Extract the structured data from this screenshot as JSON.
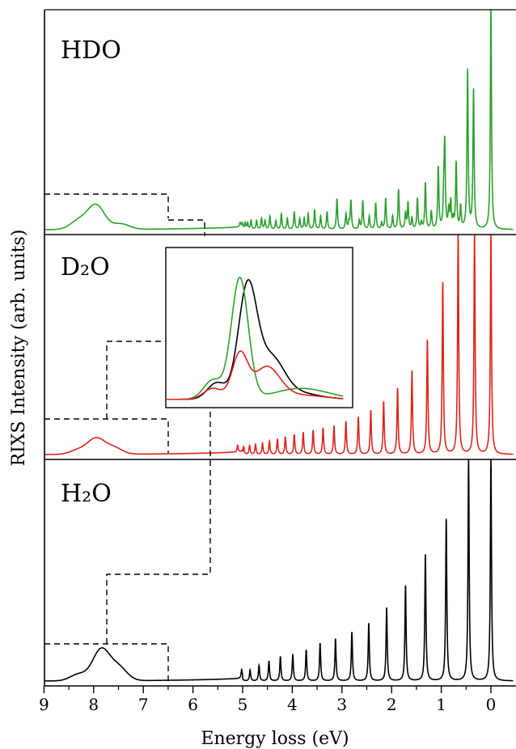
{
  "chart_data": {
    "type": "line",
    "xlabel": "Energy loss (eV)",
    "ylabel": "RIXS Intensity (arb. units)",
    "x_axis_reversed": true,
    "xlim": [
      9,
      -0.5
    ],
    "x_ticks": [
      "9",
      "8",
      "7",
      "6",
      "5",
      "4",
      "3",
      "2",
      "1",
      "0"
    ],
    "grid": false,
    "panels": [
      {
        "label": "HDO",
        "color": "#2ca02c",
        "vibrational_peaks": {
          "energies_eV": [
            0.0,
            0.35,
            0.47,
            0.61,
            0.7,
            0.76,
            0.81,
            0.85,
            0.93,
            0.95,
            1.06,
            1.2,
            1.32,
            1.4,
            1.48,
            1.59,
            1.67,
            1.72,
            1.86,
            1.98,
            2.12,
            2.2,
            2.32,
            2.45,
            2.58,
            2.65,
            2.82,
            2.86,
            2.92,
            3.1,
            3.3,
            3.43,
            3.55,
            3.68,
            3.76,
            3.85,
            3.96,
            4.1,
            4.22,
            4.33,
            4.45,
            4.55,
            4.62,
            4.72,
            4.83,
            4.9,
            4.95,
            5.0,
            5.05
          ],
          "heights": [
            1.0,
            0.63,
            0.72,
            0.1,
            0.3,
            0.04,
            0.12,
            0.08,
            0.37,
            0.14,
            0.28,
            0.08,
            0.21,
            0.03,
            0.14,
            0.05,
            0.12,
            0.07,
            0.18,
            0.06,
            0.14,
            0.03,
            0.12,
            0.06,
            0.13,
            0.04,
            0.13,
            0.03,
            0.07,
            0.14,
            0.08,
            0.06,
            0.09,
            0.07,
            0.05,
            0.05,
            0.08,
            0.05,
            0.07,
            0.04,
            0.06,
            0.04,
            0.05,
            0.04,
            0.04,
            0.03,
            0.03,
            0.02,
            0.02
          ]
        },
        "broad_band": [
          {
            "center_eV": 7.95,
            "height": 0.11
          },
          {
            "center_eV": 8.3,
            "height": 0.04
          },
          {
            "center_eV": 7.45,
            "height": 0.025
          }
        ]
      },
      {
        "label": "D₂O",
        "color": "#e0231c",
        "vibrational_peaks": {
          "energies_eV": [
            0.0,
            0.33,
            0.66,
            0.97,
            1.28,
            1.59,
            1.88,
            2.16,
            2.42,
            2.67,
            2.92,
            3.16,
            3.38,
            3.58,
            3.78,
            3.96,
            4.14,
            4.3,
            4.46,
            4.6,
            4.74,
            4.86,
            4.98,
            5.1
          ],
          "heights": [
            1.0,
            1.0,
            1.0,
            0.78,
            0.52,
            0.38,
            0.3,
            0.24,
            0.2,
            0.17,
            0.15,
            0.13,
            0.12,
            0.11,
            0.1,
            0.09,
            0.08,
            0.07,
            0.06,
            0.05,
            0.045,
            0.04,
            0.035,
            0.03
          ]
        },
        "broad_band": [
          {
            "center_eV": 7.95,
            "height": 0.07
          },
          {
            "center_eV": 7.6,
            "height": 0.03
          },
          {
            "center_eV": 8.3,
            "height": 0.02
          }
        ]
      },
      {
        "label": "H₂O",
        "color": "#000000",
        "vibrational_peaks": {
          "energies_eV": [
            0.0,
            0.45,
            0.9,
            1.32,
            1.72,
            2.1,
            2.46,
            2.8,
            3.13,
            3.44,
            3.72,
            3.99,
            4.24,
            4.47,
            4.67,
            4.85,
            5.02
          ],
          "heights": [
            1.0,
            1.0,
            0.73,
            0.57,
            0.43,
            0.33,
            0.26,
            0.22,
            0.19,
            0.17,
            0.14,
            0.12,
            0.11,
            0.09,
            0.07,
            0.05,
            0.04
          ]
        },
        "broad_band": [
          {
            "center_eV": 7.85,
            "height": 0.14
          },
          {
            "center_eV": 7.5,
            "height": 0.06
          },
          {
            "center_eV": 8.3,
            "height": 0.03
          }
        ]
      }
    ],
    "inset": {
      "series": [
        {
          "name": "",
          "color": "#000000"
        },
        {
          "name": "",
          "color": "#2ca02c"
        },
        {
          "name": "",
          "color": "#e0231c"
        }
      ]
    }
  }
}
